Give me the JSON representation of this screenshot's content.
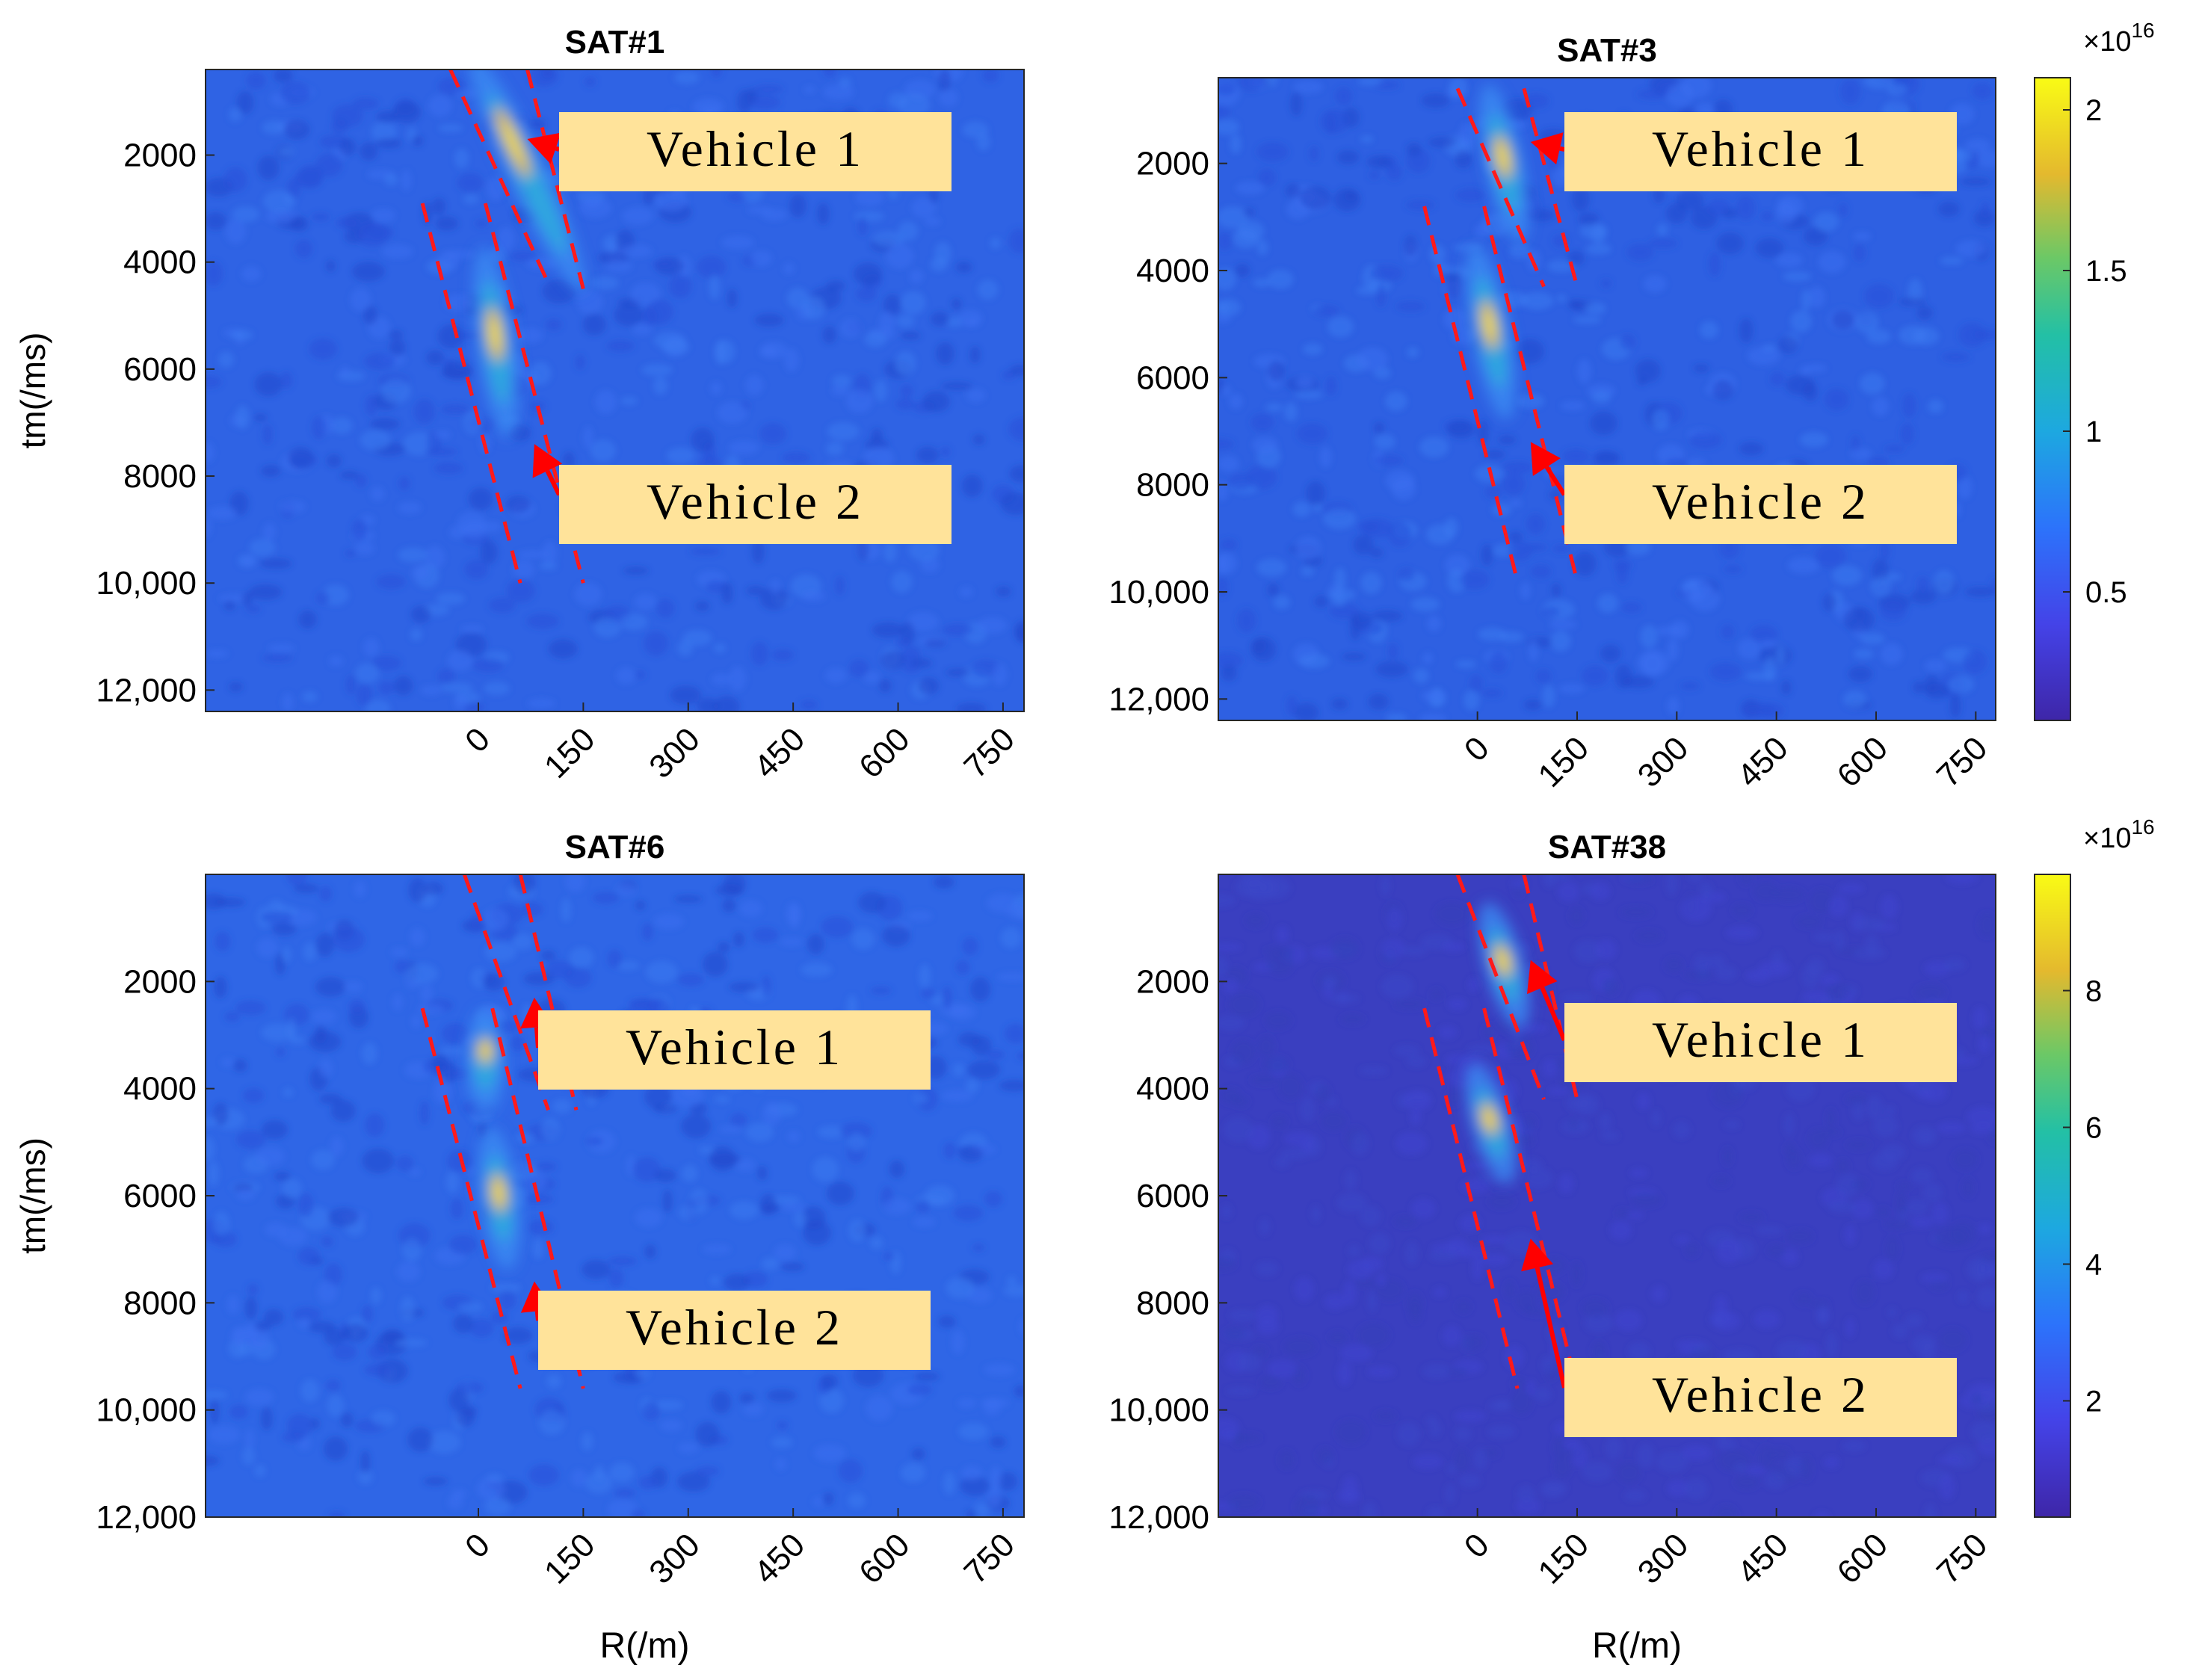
{
  "chart_data": [
    {
      "type": "heatmap",
      "title": "SAT#1",
      "xlabel": "",
      "ylabel": "tm(/ms)",
      "xlim": [
        -390,
        780
      ],
      "ylim": [
        400,
        12400
      ],
      "xticks": [
        "0",
        "150",
        "300",
        "450",
        "600",
        "750"
      ],
      "yticks": [
        "2000",
        "4000",
        "6000",
        "8000",
        "10,000",
        "12,000"
      ],
      "xtick_values": [
        0,
        150,
        300,
        450,
        600,
        750
      ],
      "ytick_values": [
        2000,
        4000,
        6000,
        8000,
        10000,
        12000
      ],
      "annotations": [
        {
          "text": "Vehicle 1",
          "target": [
            70,
            1700
          ]
        },
        {
          "text": "Vehicle 2",
          "target": [
            80,
            7400
          ]
        }
      ],
      "targets": [
        {
          "name": "Vehicle 1",
          "track": [
            [
              0,
              400
            ],
            [
              140,
              4300
            ]
          ]
        },
        {
          "name": "Vehicle 2",
          "track": [
            [
              10,
              4000
            ],
            [
              40,
              7000
            ]
          ]
        }
      ],
      "lanes": [
        [
          [
            -40,
            400
          ],
          [
            100,
            4400
          ]
        ],
        [
          [
            70,
            400
          ],
          [
            150,
            4500
          ]
        ],
        [
          [
            -80,
            2900
          ],
          [
            60,
            10000
          ]
        ],
        [
          [
            10,
            2900
          ],
          [
            150,
            10000
          ]
        ]
      ]
    },
    {
      "type": "heatmap",
      "title": "SAT#3",
      "xlabel": "",
      "ylabel": "",
      "xlim": [
        -390,
        780
      ],
      "ylim": [
        400,
        12400
      ],
      "xticks": [
        "0",
        "150",
        "300",
        "450",
        "600",
        "750"
      ],
      "yticks": [
        "2000",
        "4000",
        "6000",
        "8000",
        "10,000",
        "12,000"
      ],
      "xtick_values": [
        0,
        150,
        300,
        450,
        600,
        750
      ],
      "ytick_values": [
        2000,
        4000,
        6000,
        8000,
        10000,
        12000
      ],
      "colorbar": {
        "ticks": [
          "0.5",
          "1",
          "1.5",
          "2"
        ],
        "tick_values": [
          0.5,
          1,
          1.5,
          2
        ],
        "range": [
          0.1,
          2.1
        ],
        "exponent": "16"
      },
      "annotations": [
        {
          "text": "Vehicle 1",
          "target": [
            80,
            1600
          ]
        },
        {
          "text": "Vehicle 2",
          "target": [
            80,
            7200
          ]
        }
      ],
      "targets": [
        {
          "name": "Vehicle 1",
          "track": [
            [
              20,
              800
            ],
            [
              60,
              3200
            ]
          ]
        },
        {
          "name": "Vehicle 2",
          "track": [
            [
              0,
              3800
            ],
            [
              40,
              6500
            ]
          ]
        }
      ],
      "lanes": [
        [
          [
            -30,
            600
          ],
          [
            100,
            4300
          ]
        ],
        [
          [
            70,
            600
          ],
          [
            150,
            4300
          ]
        ],
        [
          [
            -80,
            2800
          ],
          [
            60,
            9800
          ]
        ],
        [
          [
            10,
            2800
          ],
          [
            150,
            9800
          ]
        ]
      ]
    },
    {
      "type": "heatmap",
      "title": "SAT#6",
      "xlabel": "",
      "ylabel": "tm(/ms)",
      "xlim": [
        -390,
        780
      ],
      "ylim": [
        0,
        12000
      ],
      "xticks": [
        "0",
        "150",
        "300",
        "450",
        "600",
        "750"
      ],
      "yticks": [
        "2000",
        "4000",
        "6000",
        "8000",
        "10,000",
        "12,000"
      ],
      "xtick_values": [
        0,
        150,
        300,
        450,
        600,
        750
      ],
      "ytick_values": [
        2000,
        4000,
        6000,
        8000,
        10000,
        12000
      ],
      "annotations": [
        {
          "text": "Vehicle 1",
          "target": [
            80,
            2300
          ]
        },
        {
          "text": "Vehicle 2",
          "target": [
            80,
            7600
          ]
        }
      ],
      "targets": [
        {
          "name": "Vehicle 1",
          "track": [
            [
              10,
              2800
            ],
            [
              10,
              4200
            ]
          ]
        },
        {
          "name": "Vehicle 2",
          "track": [
            [
              20,
              5000
            ],
            [
              40,
              7100
            ]
          ]
        }
      ],
      "lanes": [
        [
          [
            -20,
            0
          ],
          [
            100,
            4400
          ]
        ],
        [
          [
            60,
            0
          ],
          [
            140,
            4400
          ]
        ],
        [
          [
            -80,
            2500
          ],
          [
            60,
            9600
          ]
        ],
        [
          [
            20,
            2500
          ],
          [
            150,
            9600
          ]
        ]
      ]
    },
    {
      "type": "heatmap",
      "title": "SAT#38",
      "xlabel": "R(/m)",
      "ylabel": "",
      "xlim": [
        -390,
        780
      ],
      "ylim": [
        0,
        12000
      ],
      "xticks": [
        "0",
        "150",
        "300",
        "450",
        "600",
        "750"
      ],
      "yticks": [
        "2000",
        "4000",
        "6000",
        "8000",
        "10,000",
        "12,000"
      ],
      "xtick_values": [
        0,
        150,
        300,
        450,
        600,
        750
      ],
      "ytick_values": [
        2000,
        4000,
        6000,
        8000,
        10000,
        12000
      ],
      "colorbar": {
        "ticks": [
          "2",
          "4",
          "6",
          "8"
        ],
        "tick_values": [
          2,
          4,
          6,
          8
        ],
        "range": [
          0.3,
          9.7
        ],
        "exponent": "16"
      },
      "annotations": [
        {
          "text": "Vehicle 1",
          "target": [
            80,
            1600
          ]
        },
        {
          "text": "Vehicle 2",
          "target": [
            80,
            6800
          ]
        }
      ],
      "targets": [
        {
          "name": "Vehicle 1",
          "track": [
            [
              20,
              800
            ],
            [
              60,
              2600
            ]
          ]
        },
        {
          "name": "Vehicle 2",
          "track": [
            [
              0,
              3800
            ],
            [
              40,
              5500
            ]
          ]
        }
      ],
      "lanes": [
        [
          [
            -30,
            0
          ],
          [
            100,
            4200
          ]
        ],
        [
          [
            70,
            0
          ],
          [
            150,
            4200
          ]
        ],
        [
          [
            -80,
            2500
          ],
          [
            60,
            9600
          ]
        ],
        [
          [
            10,
            2500
          ],
          [
            150,
            9600
          ]
        ]
      ]
    }
  ],
  "shared": {
    "xlabel": "R(/m)",
    "ylabel": "tm(/ms)",
    "exponent_prefix": "×10",
    "arrow_color": "#ff0000",
    "label_box_color": "#ffe39a",
    "background_color": "#2c5fe6"
  }
}
